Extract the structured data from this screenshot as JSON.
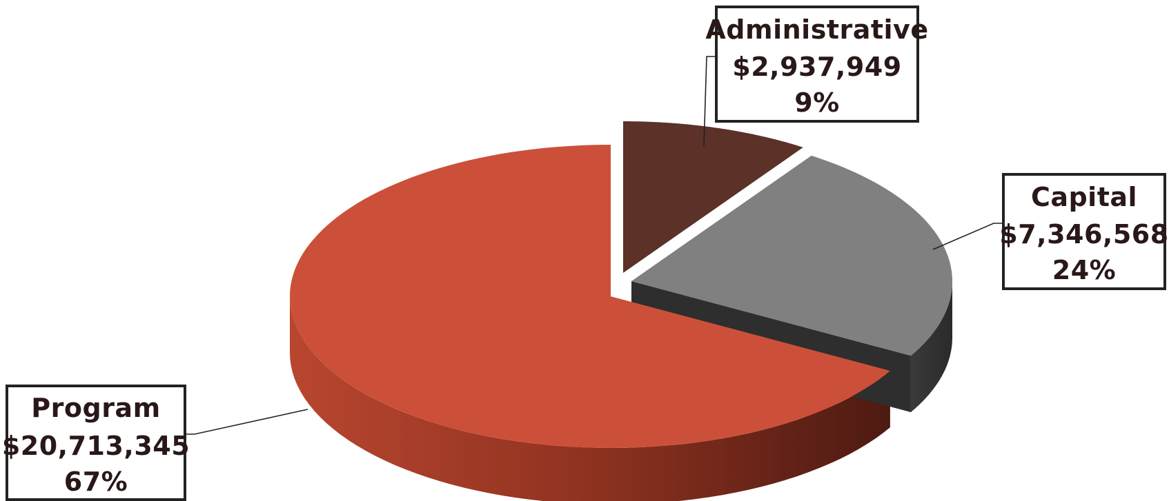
{
  "chart_data": {
    "type": "pie",
    "style": "3d-exploded",
    "legend": "none",
    "slices": [
      {
        "name": "Program",
        "value": 20713345,
        "value_label": "$20,713,345",
        "percent_label": "67%",
        "color": "#cc5039"
      },
      {
        "name": "Administrative",
        "value": 2937949,
        "value_label": "$2,937,949",
        "percent_label": "9%",
        "color": "#5b3128"
      },
      {
        "name": "Capital",
        "value": 7346568,
        "value_label": "$7,346,568",
        "percent_label": "24%",
        "color": "#808080"
      }
    ]
  }
}
